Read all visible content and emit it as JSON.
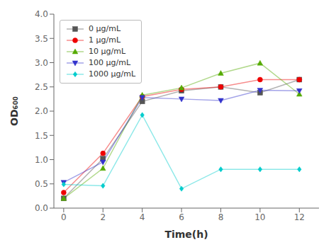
{
  "chart_data": {
    "type": "line",
    "x": [
      0,
      2,
      4,
      6,
      8,
      10,
      12
    ],
    "series": [
      {
        "name": "0 μg/mL",
        "color": "#555555",
        "marker": "square",
        "values": [
          0.2,
          1.02,
          2.2,
          2.42,
          2.5,
          2.38,
          2.65
        ]
      },
      {
        "name": "1 μg/mL",
        "color": "#ee0000",
        "marker": "circle",
        "values": [
          0.32,
          1.13,
          2.3,
          2.45,
          2.5,
          2.65,
          2.65
        ]
      },
      {
        "name": "10 μg/mL",
        "color": "#55aa00",
        "marker": "triangle_up",
        "values": [
          0.2,
          0.82,
          2.33,
          2.48,
          2.78,
          2.99,
          2.35
        ]
      },
      {
        "name": "100 μg/mL",
        "color": "#3333cc",
        "marker": "triangle_down",
        "values": [
          0.53,
          0.95,
          2.28,
          2.25,
          2.22,
          2.43,
          2.42
        ]
      },
      {
        "name": "1000 μg/mL",
        "color": "#00cccc",
        "marker": "diamond",
        "values": [
          0.49,
          0.46,
          1.92,
          0.4,
          0.8,
          0.8,
          0.8
        ]
      }
    ],
    "xlabel": "Time(h)",
    "ylabel": "OD₆₀₀",
    "xlim": [
      -0.5,
      13.0
    ],
    "ylim": [
      0.0,
      4.0
    ],
    "xticks": [
      0,
      2,
      4,
      6,
      8,
      10,
      12
    ],
    "yticks": [
      {
        "value": 0.0,
        "label": "0.0"
      },
      0.5,
      {
        "value": 1.0,
        "label": "1.0"
      },
      1.5,
      {
        "value": 2.0,
        "label": "2.0"
      },
      2.5,
      {
        "value": 3.0,
        "label": "3.0"
      },
      3.5,
      {
        "value": 4.0,
        "label": "4.0"
      }
    ],
    "grid": false,
    "legend": "upper left"
  }
}
